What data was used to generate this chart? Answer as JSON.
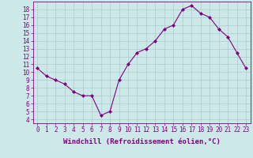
{
  "x": [
    0,
    1,
    2,
    3,
    4,
    5,
    6,
    7,
    8,
    9,
    10,
    11,
    12,
    13,
    14,
    15,
    16,
    17,
    18,
    19,
    20,
    21,
    22,
    23
  ],
  "y": [
    10.5,
    9.5,
    9.0,
    8.5,
    7.5,
    7.0,
    7.0,
    4.5,
    5.0,
    9.0,
    11.0,
    12.5,
    13.0,
    14.0,
    15.5,
    16.0,
    18.0,
    18.5,
    17.5,
    17.0,
    15.5,
    14.5,
    12.5,
    10.5
  ],
  "line_color": "#800080",
  "marker": "D",
  "marker_size": 2,
  "bg_color": "#cce8e8",
  "grid_color": "#aacccc",
  "xlabel": "Windchill (Refroidissement éolien,°C)",
  "xlabel_fontsize": 6.5,
  "tick_fontsize": 5.5,
  "xlim": [
    -0.5,
    23.5
  ],
  "ylim": [
    3.5,
    19
  ],
  "yticks": [
    4,
    5,
    6,
    7,
    8,
    9,
    10,
    11,
    12,
    13,
    14,
    15,
    16,
    17,
    18
  ],
  "xticks": [
    0,
    1,
    2,
    3,
    4,
    5,
    6,
    7,
    8,
    9,
    10,
    11,
    12,
    13,
    14,
    15,
    16,
    17,
    18,
    19,
    20,
    21,
    22,
    23
  ]
}
